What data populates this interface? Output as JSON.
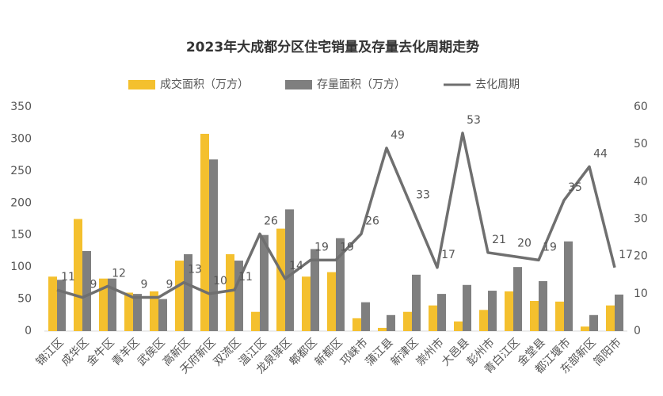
{
  "chart_data": {
    "type": "bar_line",
    "title": "2023年大成都分区住宅销量及存量去化周期走势",
    "categories": [
      "锦江区",
      "成华区",
      "金牛区",
      "青羊区",
      "武侯区",
      "高新区",
      "天府新区",
      "双流区",
      "温江区",
      "龙泉驿区",
      "郫都区",
      "新都区",
      "邛崃市",
      "蒲江县",
      "新津区",
      "崇州市",
      "大邑县",
      "彭州市",
      "青白江区",
      "金堂县",
      "都江堰市",
      "东部新区",
      "简阳市"
    ],
    "series": [
      {
        "name": "成交面积（万方）",
        "color": "#f4c02e",
        "type": "bar",
        "values": [
          85,
          175,
          82,
          60,
          62,
          110,
          308,
          120,
          30,
          160,
          85,
          92,
          20,
          5,
          30,
          40,
          15,
          33,
          62,
          47,
          46,
          7,
          40
        ]
      },
      {
        "name": "存量面积（万方）",
        "color": "#7f7f7f",
        "type": "bar",
        "values": [
          80,
          125,
          82,
          58,
          50,
          120,
          268,
          110,
          150,
          190,
          128,
          145,
          45,
          25,
          88,
          58,
          72,
          63,
          100,
          78,
          140,
          25,
          57
        ]
      },
      {
        "name": "去化周期",
        "color": "#6f6f6f",
        "type": "line",
        "axis": "y2",
        "values": [
          11,
          9,
          12,
          9,
          9,
          13,
          10,
          11,
          26,
          14,
          19,
          19,
          26,
          49,
          33,
          17,
          53,
          21,
          20,
          19,
          35,
          44,
          17
        ]
      }
    ],
    "ylim": [
      0,
      350
    ],
    "yticks": [
      0,
      50,
      100,
      150,
      200,
      250,
      300,
      350
    ],
    "y2lim": [
      0,
      60
    ],
    "y2ticks": [
      0,
      10,
      20,
      30,
      40,
      50,
      60
    ],
    "legend": "top"
  }
}
